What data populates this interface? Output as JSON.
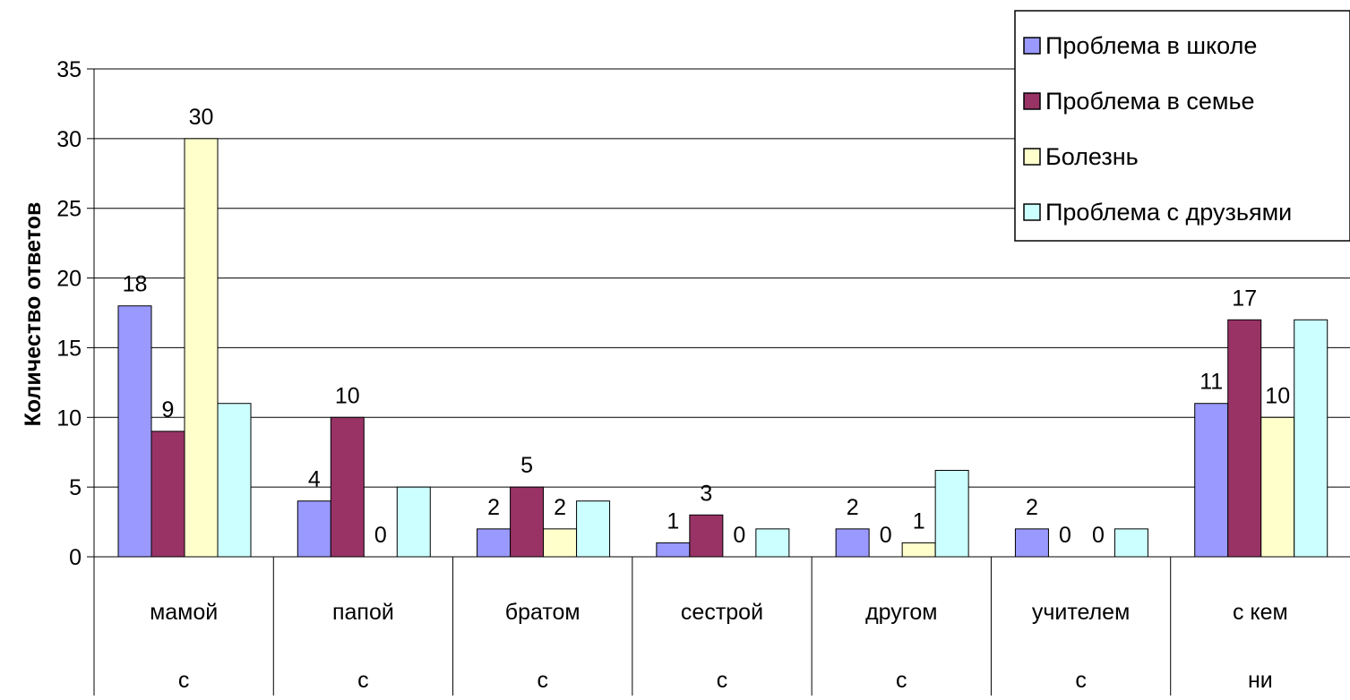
{
  "chart_data": {
    "type": "bar",
    "ylabel": "Количество ответов",
    "ylim": [
      0,
      35
    ],
    "yticks": [
      0,
      5,
      10,
      15,
      20,
      25,
      30,
      35
    ],
    "grid": true,
    "legend_position": "top-right",
    "categories": [
      {
        "line1": "мамой",
        "line2": "с"
      },
      {
        "line1": "папой",
        "line2": "с"
      },
      {
        "line1": "братом",
        "line2": "с"
      },
      {
        "line1": "сестрой",
        "line2": "с"
      },
      {
        "line1": "другом",
        "line2": "с"
      },
      {
        "line1": "учителем",
        "line2": "с"
      },
      {
        "line1": "с кем",
        "line2": "ни"
      }
    ],
    "series": [
      {
        "name": "Проблема в школе",
        "color": "#9999ff",
        "values": [
          18,
          4,
          2,
          1,
          2,
          2,
          11
        ],
        "labels": [
          "18",
          "4",
          "2",
          "1",
          "2",
          "2",
          "11"
        ]
      },
      {
        "name": "Проблема в семье",
        "color": "#993366",
        "values": [
          9,
          10,
          5,
          3,
          0,
          0,
          17
        ],
        "labels": [
          "9",
          "10",
          "5",
          "3",
          "0",
          "0",
          "17"
        ]
      },
      {
        "name": "Болезнь",
        "color": "#ffffcc",
        "values": [
          30,
          0,
          2,
          0,
          1,
          0,
          10
        ],
        "labels": [
          "30",
          "0",
          "2",
          "0",
          "1",
          "0",
          "10"
        ]
      },
      {
        "name": "Проблема с друзьями",
        "color": "#ccffff",
        "values": [
          11,
          5,
          4,
          2,
          6.2,
          2,
          17
        ],
        "labels": [
          "",
          "",
          "",
          "",
          "",
          "",
          ""
        ]
      }
    ]
  }
}
